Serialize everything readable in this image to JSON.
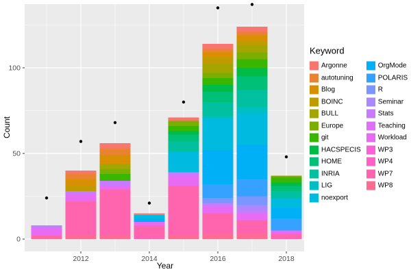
{
  "chart_data": {
    "type": "bar",
    "stacked": true,
    "title": "",
    "xlabel": "Year",
    "ylabel": "Count",
    "legend_title": "Keyword",
    "panel_bg": "#EBEBEB",
    "grid_color": "#FFFFFF",
    "tick_label_color": "#4D4D4D",
    "categories": [
      2011,
      2012,
      2013,
      2014,
      2015,
      2016,
      2017,
      2018
    ],
    "totals": [
      8,
      40,
      56,
      15,
      71,
      114,
      124,
      37
    ],
    "x_ticks": [
      2012,
      2014,
      2016,
      2018
    ],
    "x_minor": [
      2011,
      2013,
      2015,
      2017
    ],
    "y_ticks": [
      0,
      50,
      100
    ],
    "y_minor": [
      25,
      75,
      125
    ],
    "ylim": [
      0,
      140
    ],
    "series": [
      {
        "name": "Argonne",
        "color": "#F8766D",
        "values": [
          0,
          2,
          3,
          1,
          2,
          3,
          3,
          0
        ]
      },
      {
        "name": "autotuning",
        "color": "#EA8331",
        "values": [
          0,
          3,
          4,
          0,
          0,
          2,
          2,
          0
        ]
      },
      {
        "name": "Blog",
        "color": "#D89000",
        "values": [
          0,
          4,
          5,
          0,
          0,
          3,
          3,
          0
        ]
      },
      {
        "name": "BOINC",
        "color": "#C09B00",
        "values": [
          0,
          3,
          0,
          0,
          0,
          4,
          3,
          0
        ]
      },
      {
        "name": "BULL",
        "color": "#A3A500",
        "values": [
          0,
          0,
          3,
          0,
          0,
          5,
          4,
          0
        ]
      },
      {
        "name": "Europe",
        "color": "#7CAE00",
        "values": [
          0,
          0,
          3,
          0,
          3,
          3,
          4,
          1
        ]
      },
      {
        "name": "git",
        "color": "#39B600",
        "values": [
          0,
          0,
          4,
          0,
          3,
          4,
          5,
          3
        ]
      },
      {
        "name": "HACSPECIS",
        "color": "#00BB45",
        "values": [
          0,
          0,
          0,
          0,
          2,
          4,
          5,
          2
        ]
      },
      {
        "name": "HOME",
        "color": "#00C078",
        "values": [
          0,
          0,
          0,
          0,
          4,
          6,
          8,
          3
        ]
      },
      {
        "name": "INRIA",
        "color": "#00C0A0",
        "values": [
          0,
          0,
          0,
          0,
          6,
          8,
          10,
          4
        ]
      },
      {
        "name": "LIG",
        "color": "#00BFC4",
        "values": [
          0,
          0,
          0,
          0,
          0,
          2,
          4,
          0
        ]
      },
      {
        "name": "noexport",
        "color": "#00BAE0",
        "values": [
          0,
          0,
          0,
          2,
          12,
          18,
          18,
          6
        ]
      },
      {
        "name": "OrgMode",
        "color": "#00B0F6",
        "values": [
          0,
          0,
          0,
          2,
          0,
          20,
          20,
          6
        ]
      },
      {
        "name": "POLARIS",
        "color": "#35A2FF",
        "values": [
          0,
          0,
          0,
          0,
          0,
          8,
          10,
          7
        ]
      },
      {
        "name": "R",
        "color": "#7997FF",
        "values": [
          0,
          0,
          0,
          0,
          0,
          3,
          5,
          0
        ]
      },
      {
        "name": "Seminar",
        "color": "#AC88FF",
        "values": [
          0,
          0,
          0,
          0,
          0,
          0,
          3,
          0
        ]
      },
      {
        "name": "Stats",
        "color": "#C77CFF",
        "values": [
          2,
          2,
          3,
          0,
          2,
          2,
          2,
          0
        ]
      },
      {
        "name": "Teaching",
        "color": "#DF70F8",
        "values": [
          0,
          0,
          0,
          0,
          0,
          0,
          0,
          0
        ]
      },
      {
        "name": "Workload",
        "color": "#E76BF3",
        "values": [
          4,
          4,
          2,
          2,
          6,
          4,
          4,
          2
        ]
      },
      {
        "name": "WP3",
        "color": "#FB61D7",
        "values": [
          0,
          0,
          0,
          0,
          0,
          0,
          0,
          0
        ]
      },
      {
        "name": "WP4",
        "color": "#FF61C7",
        "values": [
          0,
          0,
          0,
          0,
          0,
          0,
          0,
          0
        ]
      },
      {
        "name": "WP7",
        "color": "#FF65AE",
        "values": [
          1,
          20,
          27,
          8,
          29,
          12,
          8,
          3
        ]
      },
      {
        "name": "WP8",
        "color": "#FF6C91",
        "values": [
          1,
          2,
          2,
          0,
          2,
          3,
          3,
          0
        ]
      }
    ],
    "points": {
      "name": "total-dots",
      "color": "#000000",
      "values": [
        24,
        57,
        68,
        21,
        80,
        135,
        137,
        48
      ]
    },
    "legend_position": "right",
    "legend_columns": [
      12,
      11
    ]
  }
}
